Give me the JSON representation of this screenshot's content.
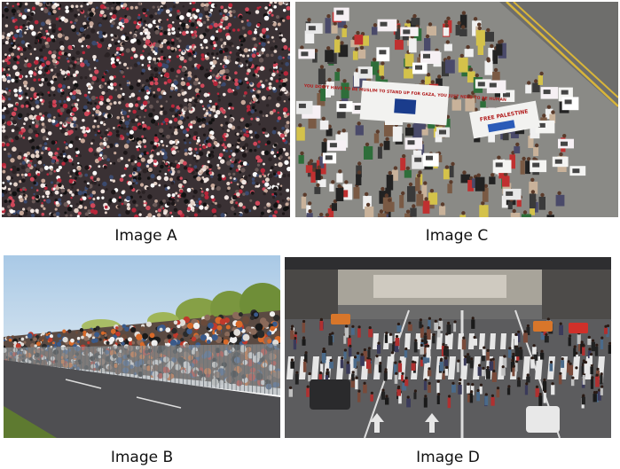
{
  "panels": [
    {
      "id": "A",
      "caption": "Image A",
      "scene": "dense-crowd-aerial"
    },
    {
      "id": "B",
      "caption": "Image B",
      "scene": "spectators-behind-barrier"
    },
    {
      "id": "C",
      "caption": "Image C",
      "scene": "protest-march-signs"
    },
    {
      "id": "D",
      "caption": "Image D",
      "scene": "pedestrian-crosswalk"
    }
  ],
  "sign_texts": {
    "banner_left": "YOU DON'T HAVE TO BE MUSLIM TO STAND UP FOR GAZA, YOU JUST NEED TO BE HUMAN",
    "banner_right": "FREE PALESTINE"
  }
}
